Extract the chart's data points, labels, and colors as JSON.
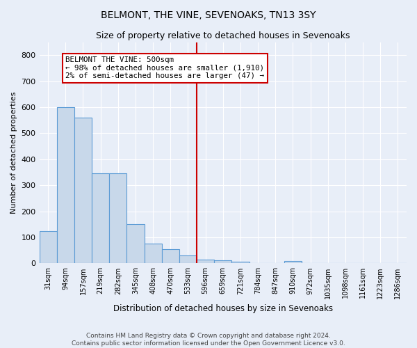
{
  "title": "BELMONT, THE VINE, SEVENOAKS, TN13 3SY",
  "subtitle": "Size of property relative to detached houses in Sevenoaks",
  "xlabel": "Distribution of detached houses by size in Sevenoaks",
  "ylabel": "Number of detached properties",
  "footnote1": "Contains HM Land Registry data © Crown copyright and database right 2024.",
  "footnote2": "Contains public sector information licensed under the Open Government Licence v3.0.",
  "bar_labels": [
    "31sqm",
    "94sqm",
    "157sqm",
    "219sqm",
    "282sqm",
    "345sqm",
    "408sqm",
    "470sqm",
    "533sqm",
    "596sqm",
    "659sqm",
    "721sqm",
    "784sqm",
    "847sqm",
    "910sqm",
    "972sqm",
    "1035sqm",
    "1098sqm",
    "1161sqm",
    "1223sqm",
    "1286sqm"
  ],
  "bar_values": [
    125,
    600,
    560,
    347,
    347,
    150,
    75,
    55,
    30,
    13,
    12,
    7,
    0,
    0,
    8,
    0,
    0,
    0,
    0,
    0,
    0
  ],
  "bar_color": "#c8d8ea",
  "bar_edge_color": "#5b9bd5",
  "vline_x": 8.5,
  "vline_color": "#cc0000",
  "annotation_text": "BELMONT THE VINE: 500sqm\n← 98% of detached houses are smaller (1,910)\n2% of semi-detached houses are larger (47) →",
  "annotation_box_color": "#ffffff",
  "annotation_box_edge": "#cc0000",
  "ylim": [
    0,
    850
  ],
  "yticks": [
    0,
    100,
    200,
    300,
    400,
    500,
    600,
    700,
    800
  ],
  "bg_color": "#e8eef8",
  "grid_color": "#ffffff",
  "title_fontsize": 10,
  "subtitle_fontsize": 9,
  "footnote_fontsize": 6.5
}
